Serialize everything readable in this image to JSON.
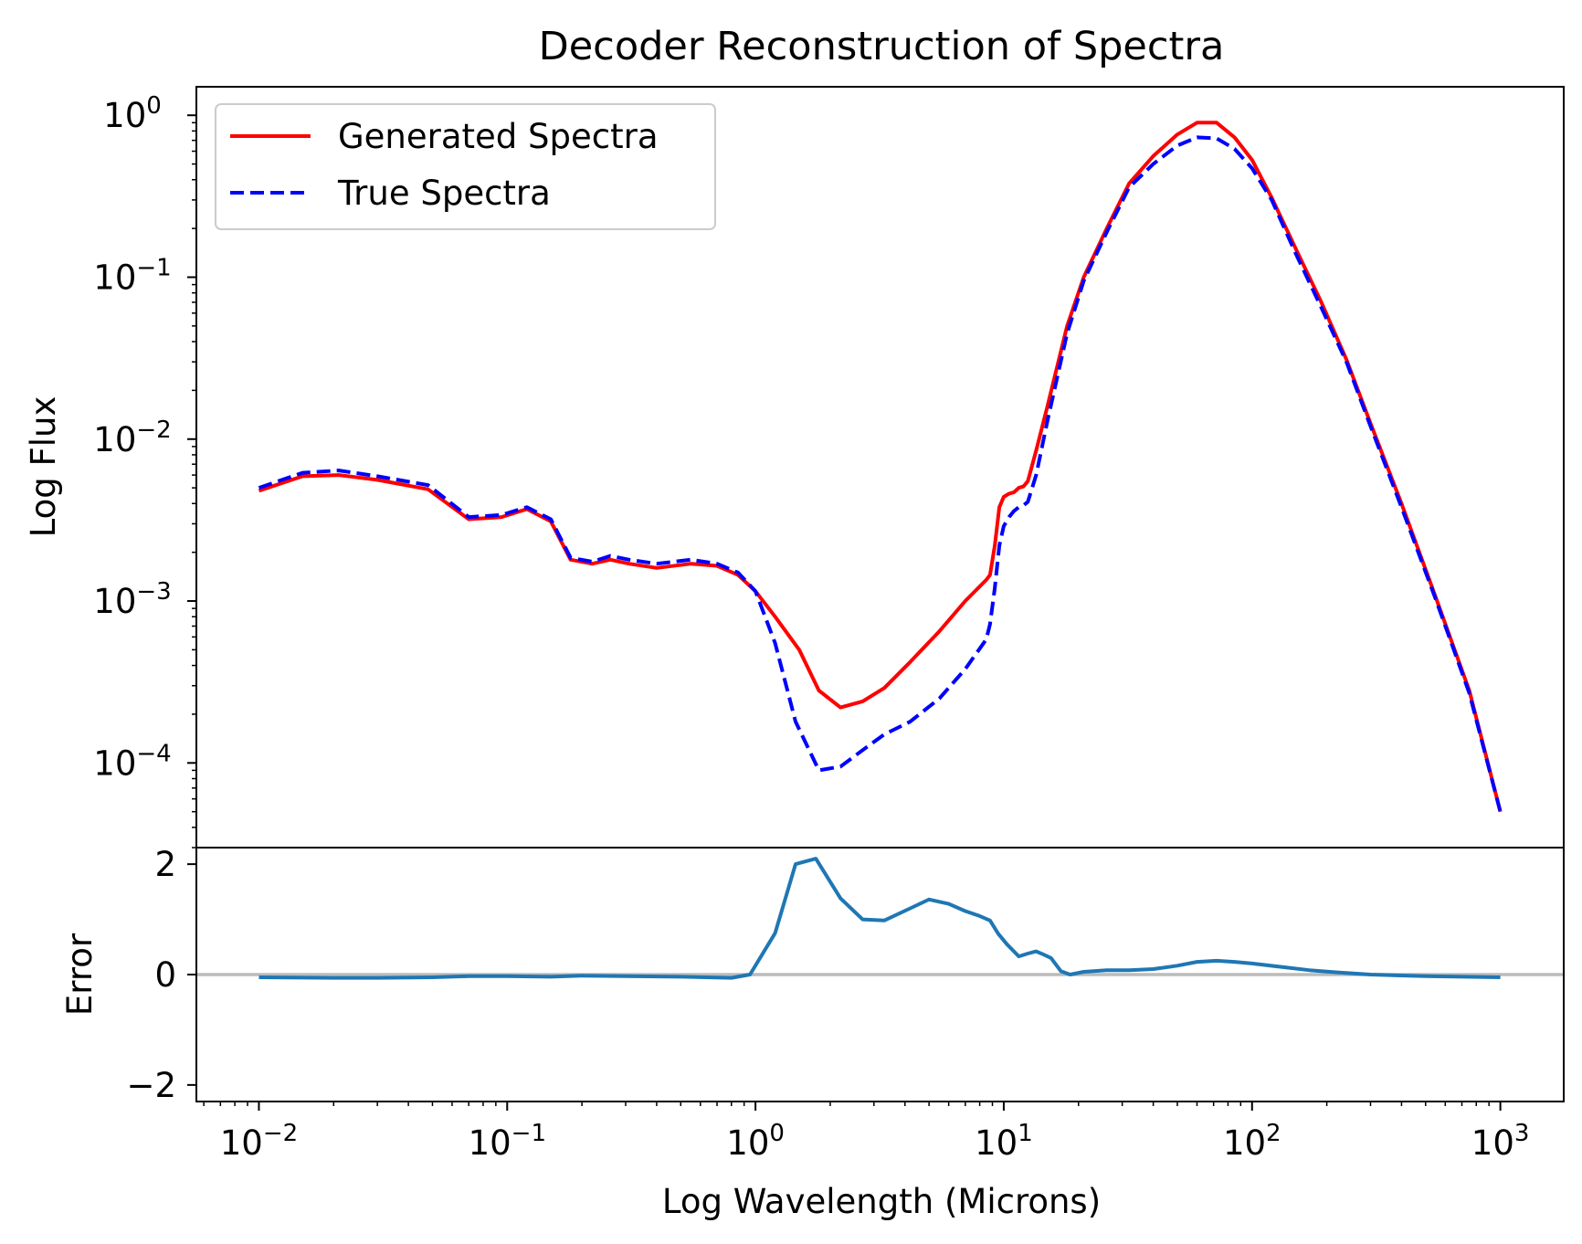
{
  "chart_data": [
    {
      "type": "line",
      "title": "Decoder Reconstruction of Spectra",
      "xlabel": "",
      "ylabel": "Log Flux",
      "xscale": "log",
      "yscale": "log",
      "xlim": [
        0.0056,
        1800
      ],
      "ylim": [
        3e-05,
        1.5
      ],
      "grid": false,
      "legend_position": "top-left",
      "yticks": [
        {
          "value": 1,
          "label": "10",
          "exp": "0"
        },
        {
          "value": 0.1,
          "label": "10",
          "exp": "−1"
        },
        {
          "value": 0.01,
          "label": "10",
          "exp": "−2"
        },
        {
          "value": 0.001,
          "label": "10",
          "exp": "−3"
        },
        {
          "value": 0.0001,
          "label": "10",
          "exp": "−4"
        }
      ],
      "series": [
        {
          "name": "Generated Spectra",
          "color": "#ff0000",
          "style": "solid",
          "x": [
            0.01,
            0.015,
            0.021,
            0.03,
            0.048,
            0.07,
            0.095,
            0.12,
            0.15,
            0.18,
            0.22,
            0.26,
            0.31,
            0.4,
            0.55,
            0.7,
            0.85,
            1.0,
            1.2,
            1.5,
            1.8,
            2.2,
            2.7,
            3.3,
            4.2,
            5.5,
            7.0,
            8.5,
            8.8,
            9.2,
            9.6,
            10.0,
            10.5,
            11.0,
            11.5,
            12.0,
            12.5,
            13.5,
            15.0,
            18.0,
            21.0,
            26.0,
            32.0,
            40.0,
            50.0,
            60.0,
            72.0,
            85.0,
            100.0,
            120.0,
            150.0,
            190.0,
            240.0,
            300.0,
            400.0,
            550.0,
            750.0,
            1000.0
          ],
          "y": [
            0.0048,
            0.0059,
            0.006,
            0.0056,
            0.0049,
            0.0032,
            0.0033,
            0.0037,
            0.0031,
            0.0018,
            0.0017,
            0.0018,
            0.0017,
            0.0016,
            0.0017,
            0.00165,
            0.00145,
            0.00115,
            0.0008,
            0.0005,
            0.00028,
            0.00022,
            0.00024,
            0.00029,
            0.00042,
            0.00065,
            0.001,
            0.00135,
            0.00145,
            0.0022,
            0.0038,
            0.0044,
            0.0046,
            0.0047,
            0.005,
            0.0051,
            0.0055,
            0.0085,
            0.016,
            0.05,
            0.1,
            0.2,
            0.38,
            0.56,
            0.76,
            0.9,
            0.9,
            0.73,
            0.53,
            0.31,
            0.15,
            0.07,
            0.031,
            0.0125,
            0.004,
            0.00105,
            0.00028,
            5e-05
          ]
        },
        {
          "name": "True Spectra",
          "color": "#0000ff",
          "style": "dashed",
          "x": [
            0.01,
            0.015,
            0.021,
            0.03,
            0.048,
            0.07,
            0.095,
            0.12,
            0.15,
            0.18,
            0.22,
            0.26,
            0.31,
            0.4,
            0.55,
            0.7,
            0.85,
            1.0,
            1.2,
            1.45,
            1.8,
            2.2,
            2.7,
            3.3,
            4.2,
            5.5,
            7.0,
            8.5,
            8.8,
            9.2,
            9.6,
            10.0,
            10.5,
            11.0,
            11.5,
            12.0,
            12.5,
            13.5,
            15.0,
            18.0,
            21.0,
            26.0,
            32.0,
            40.0,
            50.0,
            60.0,
            72.0,
            85.0,
            100.0,
            120.0,
            150.0,
            190.0,
            240.0,
            300.0,
            400.0,
            550.0,
            750.0,
            1000.0
          ],
          "y": [
            0.005,
            0.0062,
            0.0064,
            0.0059,
            0.0052,
            0.0033,
            0.0034,
            0.0038,
            0.0032,
            0.00185,
            0.00175,
            0.0019,
            0.0018,
            0.0017,
            0.0018,
            0.0017,
            0.0015,
            0.00115,
            0.00055,
            0.00018,
            9e-05,
            9.5e-05,
            0.00012,
            0.00015,
            0.00018,
            0.00025,
            0.00038,
            0.00058,
            0.00072,
            0.0012,
            0.0022,
            0.0029,
            0.0033,
            0.0036,
            0.0038,
            0.0039,
            0.0041,
            0.006,
            0.013,
            0.045,
            0.095,
            0.19,
            0.36,
            0.5,
            0.65,
            0.73,
            0.72,
            0.62,
            0.47,
            0.3,
            0.14,
            0.065,
            0.03,
            0.012,
            0.0038,
            0.00102,
            0.00027,
            5e-05
          ]
        }
      ]
    },
    {
      "type": "line",
      "title": "",
      "xlabel": "Log Wavelength (Microns)",
      "ylabel": "Error",
      "xscale": "log",
      "yscale": "linear",
      "xlim": [
        0.0056,
        1800
      ],
      "ylim": [
        -2.3,
        2.3
      ],
      "grid": false,
      "yticks": [
        {
          "value": 2,
          "label": "2"
        },
        {
          "value": 0,
          "label": "0"
        },
        {
          "value": -2,
          "label": "−2"
        }
      ],
      "xticks": [
        {
          "value": 0.01,
          "label": "10",
          "exp": "−2"
        },
        {
          "value": 0.1,
          "label": "10",
          "exp": "−1"
        },
        {
          "value": 1,
          "label": "10",
          "exp": "0"
        },
        {
          "value": 10,
          "label": "10",
          "exp": "1"
        },
        {
          "value": 100,
          "label": "10",
          "exp": "2"
        },
        {
          "value": 1000,
          "label": "10",
          "exp": "3"
        }
      ],
      "reference_line": {
        "y": 0,
        "color": "#bbbbbb"
      },
      "series": [
        {
          "color": "#1f77b4",
          "style": "solid",
          "x": [
            0.01,
            0.02,
            0.03,
            0.05,
            0.07,
            0.1,
            0.15,
            0.2,
            0.3,
            0.5,
            0.8,
            0.95,
            1.2,
            1.45,
            1.75,
            2.2,
            2.7,
            3.3,
            4.2,
            5.0,
            6.0,
            7.0,
            8.0,
            8.8,
            9.5,
            10.3,
            11.5,
            12.5,
            13.5,
            14.5,
            15.5,
            17.0,
            18.5,
            21.0,
            26.0,
            32.0,
            40.0,
            50.0,
            60.0,
            72.0,
            85.0,
            100.0,
            130.0,
            170.0,
            220.0,
            300.0,
            500.0,
            1000.0
          ],
          "y": [
            -0.05,
            -0.06,
            -0.06,
            -0.05,
            -0.03,
            -0.03,
            -0.04,
            -0.02,
            -0.03,
            -0.04,
            -0.06,
            0.0,
            0.75,
            2.0,
            2.1,
            1.38,
            1.0,
            0.98,
            1.2,
            1.36,
            1.28,
            1.15,
            1.06,
            0.98,
            0.74,
            0.55,
            0.33,
            0.38,
            0.42,
            0.36,
            0.3,
            0.06,
            0.0,
            0.05,
            0.08,
            0.08,
            0.1,
            0.16,
            0.23,
            0.25,
            0.23,
            0.2,
            0.14,
            0.08,
            0.04,
            0.0,
            -0.03,
            -0.05
          ]
        }
      ]
    }
  ]
}
